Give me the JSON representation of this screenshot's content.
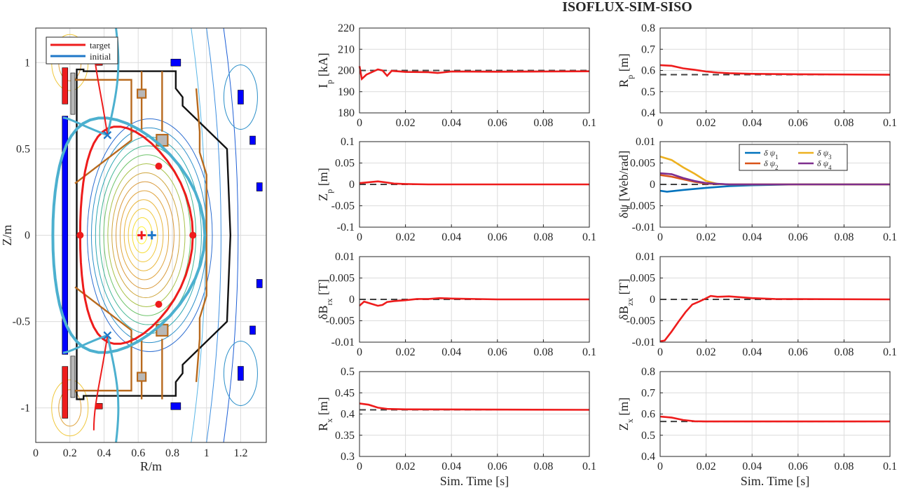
{
  "page_title": "ISOFLUX-SIM-SISO",
  "chart_data": [
    {
      "id": "equilibrium",
      "type": "scatter",
      "xlabel": "R/m",
      "ylabel": "Z/m",
      "xlim": [
        0,
        1.35
      ],
      "ylim": [
        -1.2,
        1.2
      ],
      "xticks": [
        "0",
        "0.2",
        "0.4",
        "0.6",
        "0.8",
        "1",
        "1.2"
      ],
      "yticks": [
        "1",
        "0.5",
        "0",
        "-0.5",
        "-1"
      ],
      "grid": true,
      "legend": {
        "placement": "top-left",
        "entries": [
          {
            "name": "target",
            "color": "#ee1c1c"
          },
          {
            "name": "initial",
            "color": "#1f78c8"
          }
        ]
      },
      "target_points": [
        [
          0.26,
          0.0
        ],
        [
          0.92,
          0.0
        ],
        [
          0.72,
          0.4
        ],
        [
          0.72,
          -0.4
        ]
      ],
      "x_points": [
        [
          0.42,
          0.58
        ],
        [
          0.42,
          -0.58
        ]
      ],
      "magnetic_axis": {
        "target": [
          0.62,
          0.0
        ],
        "initial": [
          0.68,
          0.0
        ]
      }
    },
    {
      "id": "ip",
      "type": "line",
      "ylabel": "I_p [kA]",
      "xlim": [
        0,
        0.1
      ],
      "ylim": [
        180,
        220
      ],
      "yticks": [
        "220",
        "210",
        "200",
        "190",
        "180"
      ],
      "xticks": [
        "0",
        "0.02",
        "0.04",
        "0.06",
        "0.08",
        "0.1"
      ],
      "reference": 200,
      "series": [
        {
          "color": "#ee1c1c",
          "points": [
            [
              0,
              202
            ],
            [
              0.001,
              196
            ],
            [
              0.003,
              198
            ],
            [
              0.006,
              199.5
            ],
            [
              0.008,
              200.5
            ],
            [
              0.01,
              200
            ],
            [
              0.012,
              197.5
            ],
            [
              0.014,
              199.8
            ],
            [
              0.02,
              199.3
            ],
            [
              0.03,
              199.2
            ],
            [
              0.034,
              198.8
            ],
            [
              0.04,
              199.5
            ],
            [
              0.06,
              199.4
            ],
            [
              0.08,
              199.5
            ],
            [
              0.1,
              199.6
            ]
          ]
        }
      ]
    },
    {
      "id": "rp",
      "type": "line",
      "ylabel": "R_p [m]",
      "xlim": [
        0,
        0.1
      ],
      "ylim": [
        0.4,
        0.8
      ],
      "yticks": [
        "0.8",
        "0.7",
        "0.6",
        "0.5",
        "0.4"
      ],
      "xticks": [
        "0",
        "0.02",
        "0.04",
        "0.06",
        "0.08",
        "0.1"
      ],
      "reference": 0.58,
      "series": [
        {
          "color": "#ee1c1c",
          "points": [
            [
              0,
              0.625
            ],
            [
              0.005,
              0.622
            ],
            [
              0.01,
              0.61
            ],
            [
              0.015,
              0.603
            ],
            [
              0.02,
              0.595
            ],
            [
              0.025,
              0.59
            ],
            [
              0.03,
              0.587
            ],
            [
              0.04,
              0.584
            ],
            [
              0.06,
              0.582
            ],
            [
              0.1,
              0.58
            ]
          ]
        }
      ]
    },
    {
      "id": "zp",
      "type": "line",
      "ylabel": "Z_p [m]",
      "xlim": [
        0,
        0.1
      ],
      "ylim": [
        -0.1,
        0.1
      ],
      "yticks": [
        "0.1",
        "0.05",
        "0",
        "-0.05",
        "-0.1"
      ],
      "xticks": [
        "0",
        "0.02",
        "0.04",
        "0.06",
        "0.08",
        "0.1"
      ],
      "reference": 0,
      "series": [
        {
          "color": "#ee1c1c",
          "points": [
            [
              0,
              0.003
            ],
            [
              0.004,
              0.005
            ],
            [
              0.008,
              0.007
            ],
            [
              0.011,
              0.005
            ],
            [
              0.015,
              0.002
            ],
            [
              0.02,
              0.001
            ],
            [
              0.03,
              0.0
            ],
            [
              0.1,
              0.0
            ]
          ]
        }
      ]
    },
    {
      "id": "dpsi",
      "type": "line",
      "ylabel": "δψ [Web/rad]",
      "xlim": [
        0,
        0.1
      ],
      "ylim": [
        -0.01,
        0.01
      ],
      "yticks": [
        "0.01",
        "0.005",
        "0",
        "-0.005",
        "-0.01"
      ],
      "xticks": [
        "0",
        "0.02",
        "0.04",
        "0.06",
        "0.08",
        "0.1"
      ],
      "reference": 0,
      "legend": {
        "placement": "top-right"
      },
      "series": [
        {
          "name": "δ ψ1",
          "color": "#0072bd",
          "points": [
            [
              0,
              -0.0015
            ],
            [
              0.003,
              -0.0017
            ],
            [
              0.01,
              -0.0013
            ],
            [
              0.02,
              -0.0008
            ],
            [
              0.03,
              -0.0004
            ],
            [
              0.04,
              -0.0002
            ],
            [
              0.05,
              -0.0001
            ],
            [
              0.06,
              0.0
            ],
            [
              0.1,
              0.0
            ]
          ]
        },
        {
          "name": "δ ψ2",
          "color": "#d95319",
          "points": [
            [
              0,
              0.0022
            ],
            [
              0.005,
              0.0018
            ],
            [
              0.01,
              0.0012
            ],
            [
              0.015,
              0.0006
            ],
            [
              0.02,
              0.0002
            ],
            [
              0.03,
              0.0
            ],
            [
              0.1,
              0.0
            ]
          ]
        },
        {
          "name": "δ ψ3",
          "color": "#edb120",
          "points": [
            [
              0,
              0.0065
            ],
            [
              0.005,
              0.0057
            ],
            [
              0.01,
              0.004
            ],
            [
              0.015,
              0.0025
            ],
            [
              0.02,
              0.0008
            ],
            [
              0.025,
              0.0001
            ],
            [
              0.03,
              0.0
            ],
            [
              0.1,
              0.0
            ]
          ]
        },
        {
          "name": "δ ψ4",
          "color": "#7e2f8e",
          "points": [
            [
              0,
              0.0026
            ],
            [
              0.005,
              0.0024
            ],
            [
              0.01,
              0.0015
            ],
            [
              0.015,
              0.0008
            ],
            [
              0.02,
              0.0003
            ],
            [
              0.03,
              0.0
            ],
            [
              0.1,
              0.0
            ]
          ]
        }
      ]
    },
    {
      "id": "brx",
      "type": "line",
      "ylabel": "δB_rx [T]",
      "xlim": [
        0,
        0.1
      ],
      "ylim": [
        -0.01,
        0.01
      ],
      "yticks": [
        "0.01",
        "0.005",
        "0",
        "-0.005",
        "-0.01"
      ],
      "xticks": [
        "0",
        "0.02",
        "0.04",
        "0.06",
        "0.08",
        "0.1"
      ],
      "reference": 0,
      "series": [
        {
          "color": "#ee1c1c",
          "points": [
            [
              0,
              -0.0015
            ],
            [
              0.002,
              -0.0005
            ],
            [
              0.005,
              -0.001
            ],
            [
              0.008,
              -0.0015
            ],
            [
              0.01,
              -0.0013
            ],
            [
              0.012,
              -0.0006
            ],
            [
              0.015,
              -0.0004
            ],
            [
              0.02,
              -0.0002
            ],
            [
              0.025,
              0.0001
            ],
            [
              0.03,
              0.0001
            ],
            [
              0.035,
              0.0003
            ],
            [
              0.04,
              0.0002
            ],
            [
              0.06,
              0.0
            ],
            [
              0.1,
              0.0
            ]
          ]
        }
      ]
    },
    {
      "id": "bzx",
      "type": "line",
      "ylabel": "δB_zx [T]",
      "xlim": [
        0,
        0.1
      ],
      "ylim": [
        -0.01,
        0.01
      ],
      "yticks": [
        "0.01",
        "0.005",
        "0",
        "-0.005",
        "-0.01"
      ],
      "xticks": [
        "0",
        "0.02",
        "0.04",
        "0.06",
        "0.08",
        "0.1"
      ],
      "reference": 0,
      "series": [
        {
          "color": "#ee1c1c",
          "points": [
            [
              0,
              -0.0098
            ],
            [
              0.002,
              -0.0096
            ],
            [
              0.005,
              -0.0075
            ],
            [
              0.008,
              -0.0052
            ],
            [
              0.011,
              -0.003
            ],
            [
              0.014,
              -0.0012
            ],
            [
              0.017,
              -0.0005
            ],
            [
              0.019,
              0.0
            ],
            [
              0.022,
              0.0008
            ],
            [
              0.025,
              0.0006
            ],
            [
              0.03,
              0.0007
            ],
            [
              0.035,
              0.0005
            ],
            [
              0.04,
              0.0003
            ],
            [
              0.05,
              0.0001
            ],
            [
              0.1,
              0.0
            ]
          ]
        }
      ]
    },
    {
      "id": "rx",
      "type": "line",
      "ylabel": "R_x [m]",
      "xlim": [
        0,
        0.1
      ],
      "ylim": [
        0.3,
        0.5
      ],
      "yticks": [
        "0.5",
        "0.45",
        "0.4",
        "0.35",
        "0.3"
      ],
      "xticks": [
        "0",
        "0.02",
        "0.04",
        "0.06",
        "0.08",
        "0.1"
      ],
      "reference": 0.41,
      "series": [
        {
          "color": "#ee1c1c",
          "points": [
            [
              0,
              0.425
            ],
            [
              0.004,
              0.422
            ],
            [
              0.008,
              0.415
            ],
            [
              0.012,
              0.412
            ],
            [
              0.02,
              0.411
            ],
            [
              0.1,
              0.41
            ]
          ]
        }
      ]
    },
    {
      "id": "zx",
      "type": "line",
      "ylabel": "Z_x [m]",
      "xlim": [
        0,
        0.1
      ],
      "ylim": [
        0.4,
        0.8
      ],
      "yticks": [
        "0.8",
        "0.7",
        "0.6",
        "0.5",
        "0.4"
      ],
      "xticks": [
        "0",
        "0.02",
        "0.04",
        "0.06",
        "0.08",
        "0.1"
      ],
      "reference": 0.565,
      "series": [
        {
          "color": "#ee1c1c",
          "points": [
            [
              0,
              0.588
            ],
            [
              0.005,
              0.583
            ],
            [
              0.01,
              0.572
            ],
            [
              0.015,
              0.566
            ],
            [
              0.02,
              0.565
            ],
            [
              0.1,
              0.565
            ]
          ]
        }
      ]
    }
  ],
  "x_axis_label": "Sim. Time [s]"
}
